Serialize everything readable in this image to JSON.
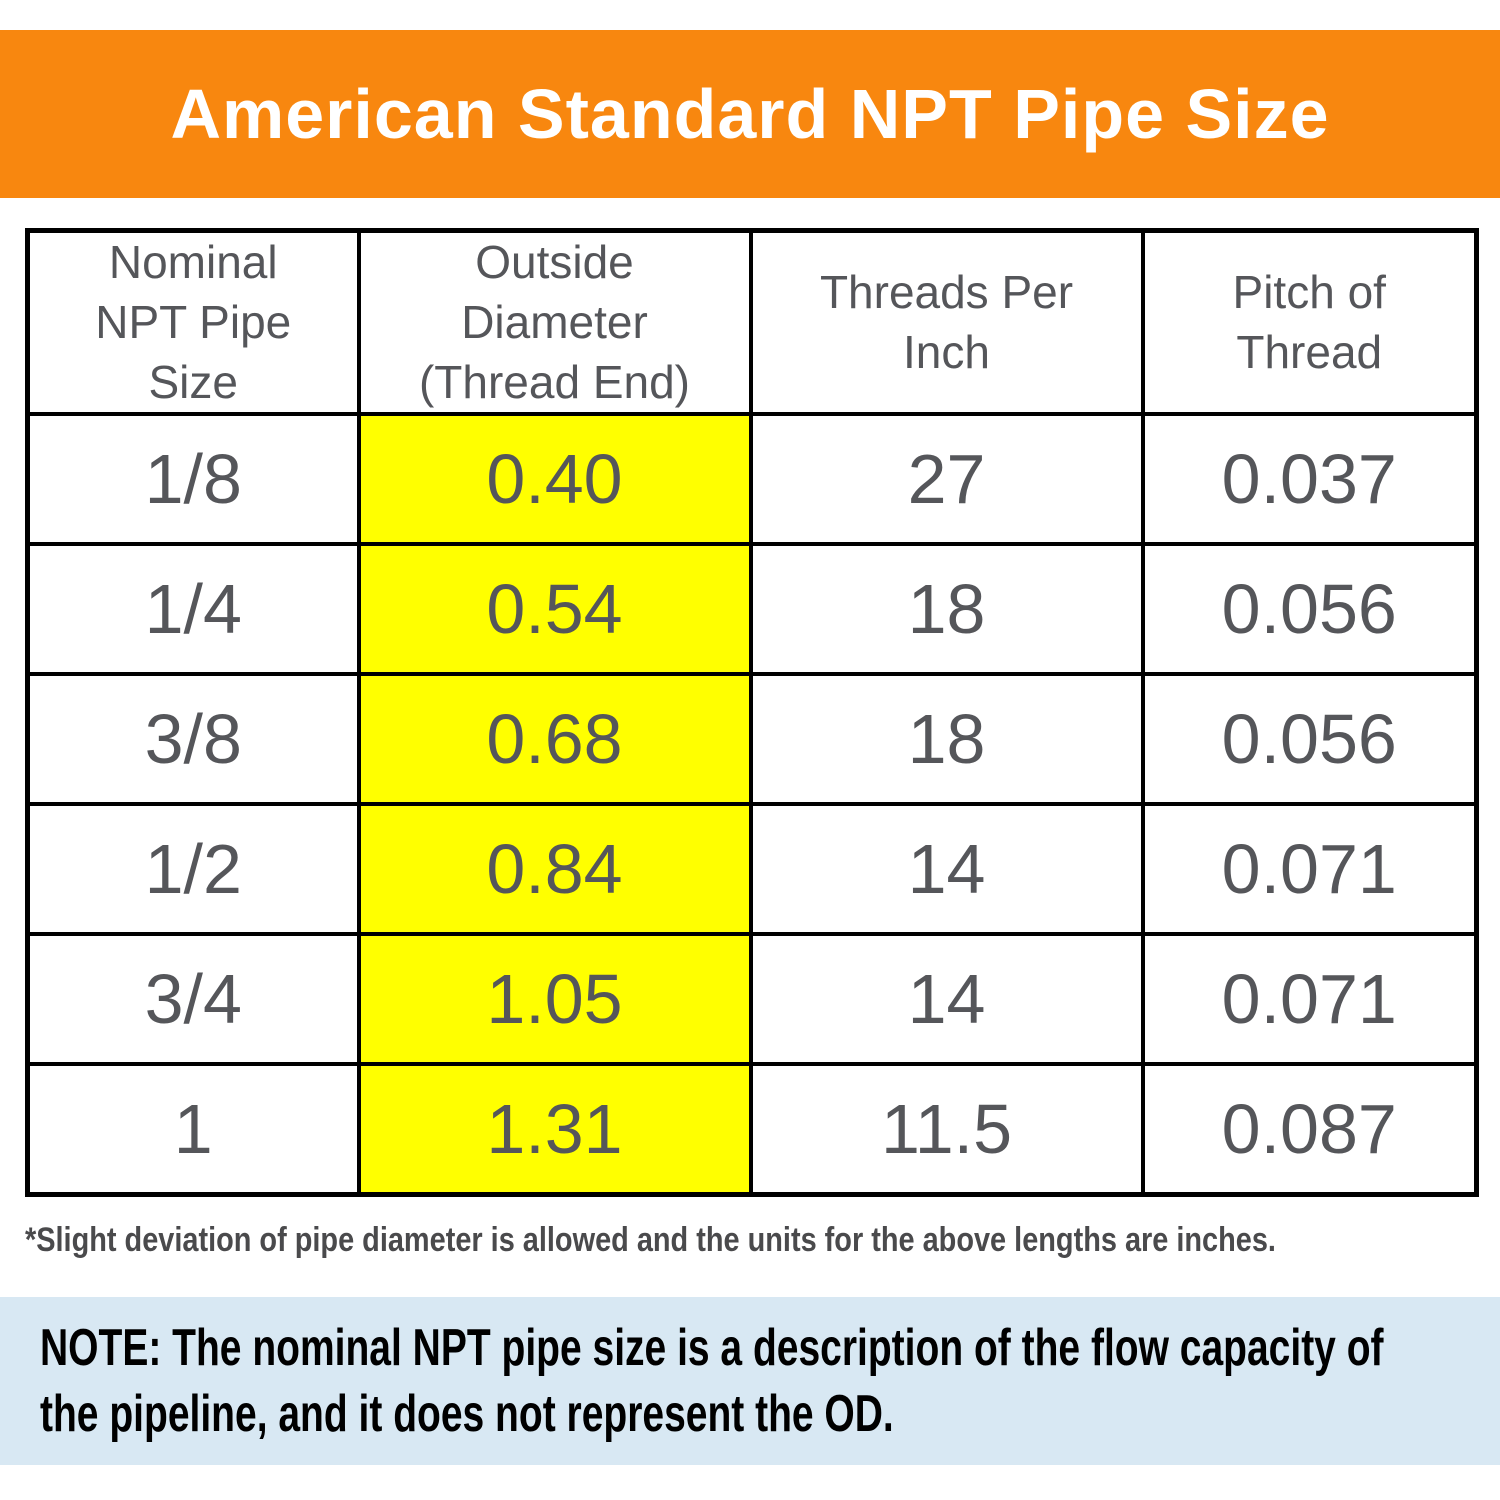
{
  "title": "American Standard NPT Pipe Size",
  "chart_data": {
    "type": "table",
    "title": "American Standard NPT Pipe Size",
    "columns": [
      "Nominal NPT Pipe Size",
      "Outside Diameter (Thread End)",
      "Threads Per Inch",
      "Pitch of Thread"
    ],
    "highlight_col": 1,
    "rows": [
      [
        "1/8",
        "0.40",
        "27",
        "0.037"
      ],
      [
        "1/4",
        "0.54",
        "18",
        "0.056"
      ],
      [
        "3/8",
        "0.68",
        "18",
        "0.056"
      ],
      [
        "1/2",
        "0.84",
        "14",
        "0.071"
      ],
      [
        "3/4",
        "1.05",
        "14",
        "0.071"
      ],
      [
        "1",
        "1.31",
        "11.5",
        "0.087"
      ]
    ],
    "units": "inches"
  },
  "footnote": "*Slight deviation of pipe diameter is allowed and the units for the above lengths are inches.",
  "note": {
    "line1": "NOTE: The nominal NPT pipe size is a description of the flow capacity of",
    "line2": "the pipeline, and it does not represent the OD."
  },
  "colors": {
    "banner": "#F8870F",
    "highlight": "#FFFF00",
    "note_bg": "#D8E8F3",
    "table_text": "#55565A",
    "footnote_text": "#4A4A4C"
  }
}
